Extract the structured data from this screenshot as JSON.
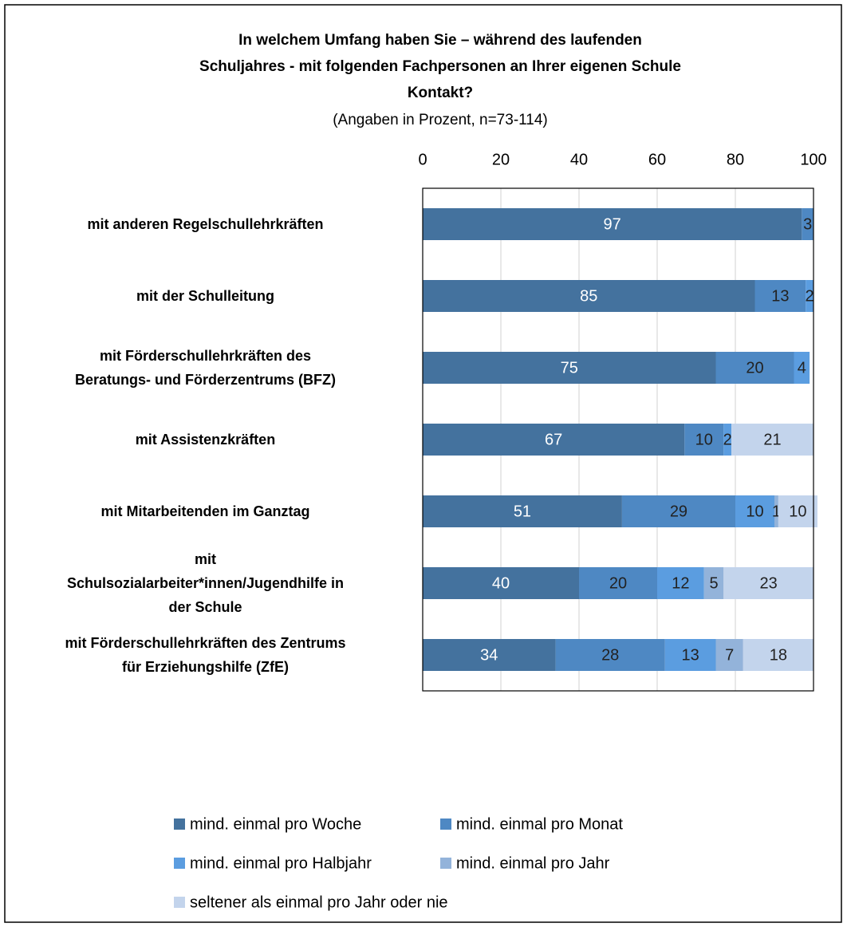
{
  "chart_data": {
    "type": "stacked_bar_horizontal",
    "title": "In welchem Umfang haben Sie – während des laufenden\nSchuljahres - mit folgenden Fachpersonen an Ihrer eigenen Schule\nKontakt?",
    "subtitle": "(Angaben in Prozent, n=73-114)",
    "categories": [
      "mit anderen Regelschullehrkräften",
      "mit der Schulleitung",
      "mit Förderschullehrkräften des\nBeratungs- und Förderzentrums (BFZ)",
      "mit Assistenzkräften",
      "mit Mitarbeitenden im Ganztag",
      "mit\nSchulsozialarbeiter*innen/Jugendhilfe in\nder Schule",
      "mit Förderschullehrkräften des Zentrums\nfür Erziehungshilfe (ZfE)"
    ],
    "series": [
      {
        "name": "mind. einmal pro Woche",
        "color": "#44729e",
        "values": [
          97,
          85,
          75,
          67,
          51,
          40,
          34
        ]
      },
      {
        "name": "mind. einmal pro Monat",
        "color": "#4e88c3",
        "values": [
          3,
          13,
          20,
          10,
          29,
          20,
          28
        ]
      },
      {
        "name": "mind. einmal pro Halbjahr",
        "color": "#5b9de0",
        "values": [
          null,
          2,
          4,
          2,
          10,
          12,
          13
        ]
      },
      {
        "name": "mind. einmal pro Jahr",
        "color": "#93b3da",
        "values": [
          null,
          null,
          null,
          null,
          1,
          5,
          7
        ]
      },
      {
        "name": "seltener als einmal pro Jahr oder nie",
        "color": "#c3d4ec",
        "values": [
          null,
          null,
          null,
          21,
          10,
          23,
          18
        ]
      }
    ],
    "xlim": [
      0,
      100
    ],
    "xticks": [
      0,
      20,
      40,
      60,
      80,
      100
    ],
    "grid": true
  }
}
